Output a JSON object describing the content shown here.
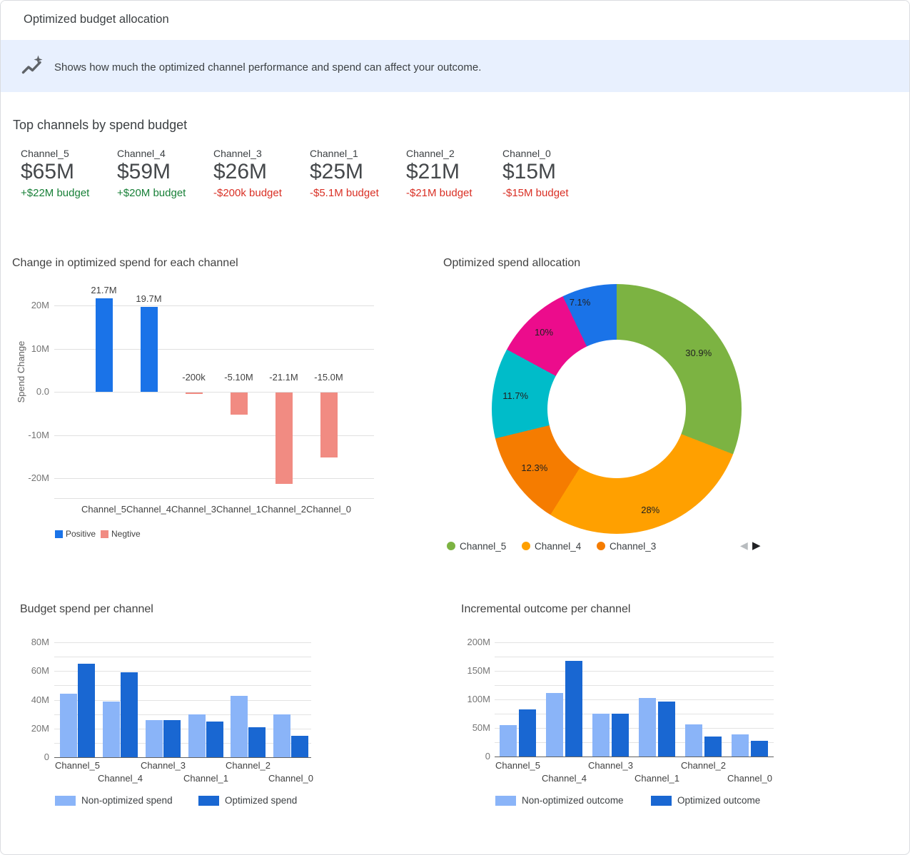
{
  "header": {
    "title": "Optimized budget allocation"
  },
  "banner": {
    "text": "Shows how much the optimized channel performance and spend can affect your outcome."
  },
  "top_channels": {
    "title": "Top channels by spend budget",
    "positive_color": "#188038",
    "negative_color": "#D93025",
    "items": [
      {
        "name": "Channel_5",
        "value": "$65M",
        "budget": "+$22M budget"
      },
      {
        "name": "Channel_4",
        "value": "$59M",
        "budget": "+$20M budget"
      },
      {
        "name": "Channel_3",
        "value": "$26M",
        "budget": "-$200k budget"
      },
      {
        "name": "Channel_1",
        "value": "$25M",
        "budget": "-$5.1M budget"
      },
      {
        "name": "Channel_2",
        "value": "$21M",
        "budget": "-$21M budget"
      },
      {
        "name": "Channel_0",
        "value": "$15M",
        "budget": "-$15M budget"
      }
    ]
  },
  "chart_data": [
    {
      "id": "spend-change",
      "type": "bar",
      "title": "Change in optimized spend for each channel",
      "ylabel": "Spend Change",
      "unit": "millions",
      "categories": [
        "Channel_5",
        "Channel_4",
        "Channel_3",
        "Channel_1",
        "Channel_2",
        "Channel_0"
      ],
      "values": [
        21.7,
        19.7,
        -0.2,
        -5.1,
        -21.1,
        -15.0
      ],
      "value_labels": [
        "21.7M",
        "19.7M",
        "-200k",
        "-5.10M",
        "-21.1M",
        "-15.0M"
      ],
      "ylim": [
        -25,
        25
      ],
      "yticks": [
        {
          "value": 20,
          "label": "20M"
        },
        {
          "value": 10,
          "label": "10M"
        },
        {
          "value": 0,
          "label": "0.0"
        },
        {
          "value": -10,
          "label": "-10M"
        },
        {
          "value": -20,
          "label": "-20M"
        }
      ],
      "colors": {
        "positive": "#1A73E8",
        "negative": "#F18B82"
      },
      "legend": [
        {
          "label": "Positive",
          "color": "#1A73E8"
        },
        {
          "label": "Negtive",
          "color": "#F18B82"
        }
      ]
    },
    {
      "id": "spend-allocation",
      "type": "pie",
      "title": "Optimized spend allocation",
      "donut": true,
      "slices": [
        {
          "pct": 30.9,
          "label": "30.9%",
          "color": "#7CB342",
          "channel": "Channel_5"
        },
        {
          "pct": 28,
          "label": "28%",
          "color": "#FFA000",
          "channel": "Channel_4"
        },
        {
          "pct": 12.3,
          "label": "12.3%",
          "color": "#F57C00",
          "channel": "Channel_3"
        },
        {
          "pct": 11.7,
          "label": "11.7%",
          "color": "#00BCC9"
        },
        {
          "pct": 10,
          "label": "10%",
          "color": "#EC0C8C"
        },
        {
          "pct": 7.1,
          "label": "7.1%",
          "color": "#1A73E8"
        }
      ],
      "legend": [
        {
          "label": "Channel_5",
          "color": "#7CB342"
        },
        {
          "label": "Channel_4",
          "color": "#FFA000"
        },
        {
          "label": "Channel_3",
          "color": "#F57C00"
        }
      ],
      "pagination": {
        "prev_icon": "◀",
        "next_icon": "▶"
      }
    },
    {
      "id": "budget-spend",
      "type": "bar",
      "title": "Budget spend per channel",
      "unit": "millions",
      "categories": [
        "Channel_5",
        "Channel_4",
        "Channel_3",
        "Channel_1",
        "Channel_2",
        "Channel_0"
      ],
      "series": [
        {
          "name": "Non-optimized spend",
          "color": "#8AB4F8",
          "values": [
            44,
            39,
            26,
            30,
            42.5,
            30
          ]
        },
        {
          "name": "Optimized spend",
          "color": "#1967D2",
          "values": [
            65,
            59,
            26,
            25,
            21,
            14.7
          ]
        }
      ],
      "ylim": [
        0,
        80
      ],
      "grid_step": 10,
      "yticks": [
        {
          "value": 0,
          "label": "0"
        },
        {
          "value": 20,
          "label": "20M"
        },
        {
          "value": 40,
          "label": "40M"
        },
        {
          "value": 60,
          "label": "60M"
        },
        {
          "value": 80,
          "label": "80M"
        }
      ]
    },
    {
      "id": "incremental-outcome",
      "type": "bar",
      "title": "Incremental outcome per channel",
      "unit": "millions",
      "categories": [
        "Channel_5",
        "Channel_4",
        "Channel_3",
        "Channel_1",
        "Channel_2",
        "Channel_0"
      ],
      "series": [
        {
          "name": "Non-optimized outcome",
          "color": "#8AB4F8",
          "values": [
            55,
            111,
            75,
            102,
            56,
            39
          ]
        },
        {
          "name": "Optimized outcome",
          "color": "#1967D2",
          "values": [
            82,
            167,
            75,
            96,
            35,
            27
          ]
        }
      ],
      "ylim": [
        0,
        200
      ],
      "grid_step": 25,
      "yticks": [
        {
          "value": 0,
          "label": "0"
        },
        {
          "value": 50,
          "label": "50M"
        },
        {
          "value": 100,
          "label": "100M"
        },
        {
          "value": 150,
          "label": "150M"
        },
        {
          "value": 200,
          "label": "200M"
        }
      ]
    }
  ]
}
